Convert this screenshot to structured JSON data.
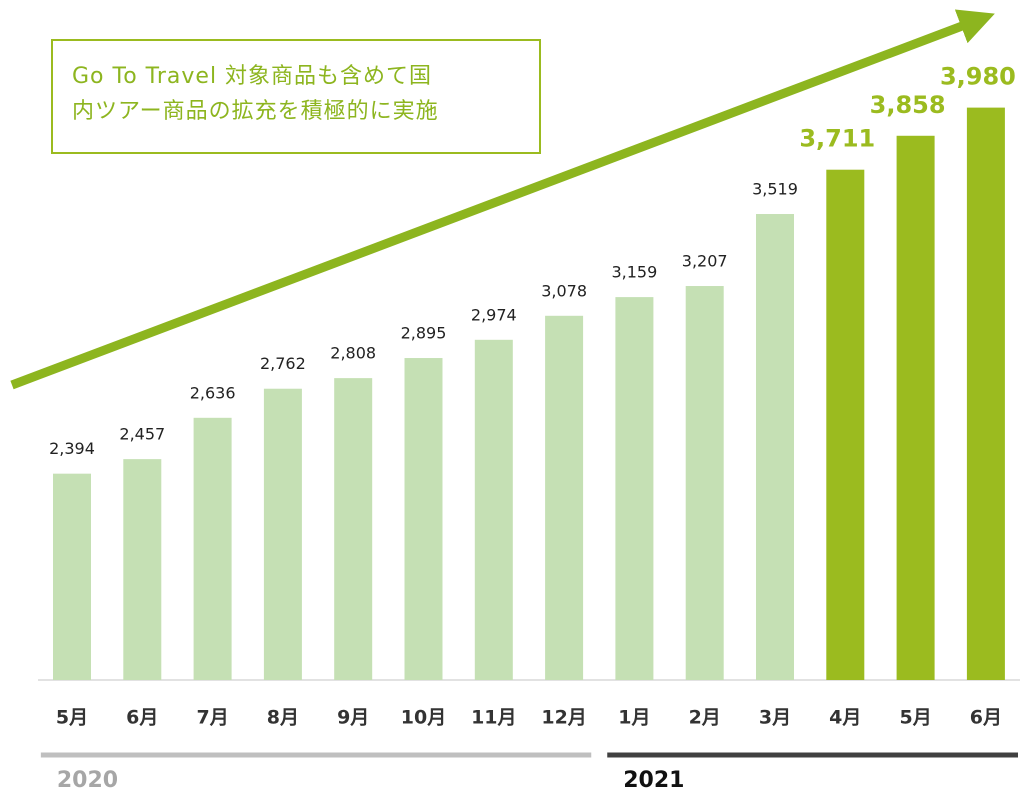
{
  "chart_data": {
    "type": "bar",
    "annotation": [
      "Go To Travel 対象商品も含めて国",
      "内ツアー商品の拡充を積極的に実施"
    ],
    "categories": [
      "5月",
      "6月",
      "7月",
      "8月",
      "9月",
      "10月",
      "11月",
      "12月",
      "1月",
      "2月",
      "3月",
      "4月",
      "5月",
      "6月"
    ],
    "values": [
      2394,
      2457,
      2636,
      2762,
      2808,
      2895,
      2974,
      3078,
      3159,
      3207,
      3519,
      3711,
      3858,
      3980
    ],
    "value_labels": [
      "2,394",
      "2,457",
      "2,636",
      "2,762",
      "2,808",
      "2,895",
      "2,974",
      "3,078",
      "3,159",
      "3,207",
      "3,519",
      "3,711",
      "3,858",
      "3,980"
    ],
    "colors": [
      "#c5e0b4",
      "#c5e0b4",
      "#c5e0b4",
      "#c5e0b4",
      "#c5e0b4",
      "#c5e0b4",
      "#c5e0b4",
      "#c5e0b4",
      "#c5e0b4",
      "#c5e0b4",
      "#c5e0b4",
      "#9bbb1f",
      "#9bbb1f",
      "#9bbb1f"
    ],
    "ylim": [
      1500,
      4000
    ],
    "groups": [
      {
        "label": "2020",
        "count": 8,
        "color": "#bfbfbf"
      },
      {
        "label": "2021",
        "count": 6,
        "color": "#404040"
      }
    ]
  }
}
